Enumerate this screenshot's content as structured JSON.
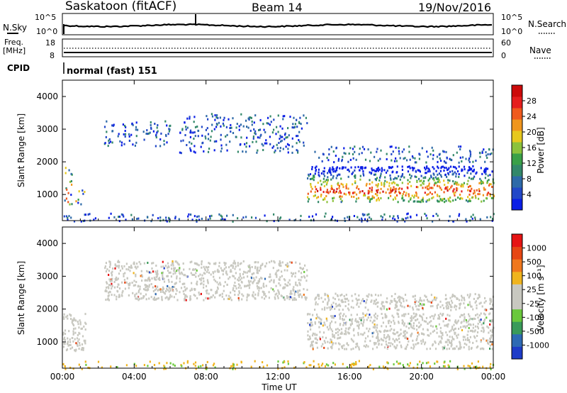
{
  "header": {
    "station": "Saskatoon (fitACF)",
    "beam": "Beam 14",
    "date": "19/Nov/2016"
  },
  "noise_panel": {
    "left_label": "N.Sky",
    "left_ticks": [
      "10^5",
      "10^0"
    ],
    "right_ticks": [
      "10^5",
      "10^0"
    ],
    "right_label": "N.Search"
  },
  "freq_panel": {
    "left_label": [
      "Freq.",
      "[MHz]"
    ],
    "left_ticks": [
      "18",
      "8"
    ],
    "right_ticks": [
      "60",
      "0"
    ],
    "right_label": "Nave"
  },
  "cpid": {
    "label": "CPID",
    "value": "normal (fast) 151"
  },
  "chart_data": [
    {
      "type": "heatmap",
      "quantity": "Power",
      "ylabel": "Slant Range [km]",
      "yticks": [
        "4000",
        "3000",
        "2000",
        "1000"
      ],
      "ylim": [
        200,
        4500
      ],
      "colorbar_label": "Power [dB]",
      "colorbar_ticks": [
        "28",
        "24",
        "20",
        "16",
        "12",
        "8",
        "4"
      ],
      "colorbar_range": [
        0,
        30
      ],
      "colors": [
        "#0a1ee6",
        "#2248c8",
        "#2e6aa8",
        "#33886a",
        "#3aa048",
        "#8cc23c",
        "#e6c81e",
        "#f0961e",
        "#f05a1e",
        "#e61e1e",
        "#cc0a0a"
      ],
      "xlim_hours": [
        0,
        24
      ],
      "regions": [
        {
          "t": [
            0.0,
            0.5
          ],
          "range": [
            700,
            1900
          ],
          "level": "mixed"
        },
        {
          "t": [
            0.7,
            1.3
          ],
          "range": [
            700,
            1200
          ],
          "level": "mixed"
        },
        {
          "t": [
            2.3,
            6.0
          ],
          "range": [
            2500,
            3300
          ],
          "level": "weak"
        },
        {
          "t": [
            6.5,
            13.6
          ],
          "range": [
            2300,
            3500
          ],
          "level": "weak"
        },
        {
          "t": [
            13.6,
            24.0
          ],
          "range": [
            800,
            1900
          ],
          "level": "strong"
        },
        {
          "t": [
            14.0,
            24.0
          ],
          "range": [
            2000,
            2500
          ],
          "level": "weak"
        },
        {
          "t": [
            0.0,
            24.0
          ],
          "range": [
            200,
            450
          ],
          "level": "weak"
        }
      ]
    },
    {
      "type": "heatmap",
      "quantity": "Velocity",
      "xlabel": "Time UT",
      "ylabel": "Slant Range [km]",
      "xticks": [
        "00:00",
        "04:00",
        "08:00",
        "12:00",
        "16:00",
        "20:00",
        "00:00"
      ],
      "yticks": [
        "4000",
        "3000",
        "2000",
        "1000"
      ],
      "ylim": [
        200,
        4500
      ],
      "colorbar_label": "Velocity [m s⁻¹]",
      "colorbar_ticks": [
        "1000",
        "500",
        "100",
        "25",
        "-25",
        "-100",
        "-500",
        "-1000"
      ],
      "colors": [
        "#1e3cc8",
        "#2e6ab4",
        "#3a9a5a",
        "#6ac83c",
        "#c8c8c0",
        "#c8c8c0",
        "#f0b41e",
        "#f0781e",
        "#e64614",
        "#e61414"
      ],
      "xlim_hours": [
        0,
        24
      ],
      "regions": [
        {
          "t": [
            0.0,
            1.3
          ],
          "range": [
            700,
            1900
          ],
          "level": "ground"
        },
        {
          "t": [
            2.3,
            13.6
          ],
          "range": [
            2300,
            3500
          ],
          "level": "ground"
        },
        {
          "t": [
            13.6,
            24.0
          ],
          "range": [
            800,
            1900
          ],
          "level": "ground"
        },
        {
          "t": [
            14.0,
            24.0
          ],
          "range": [
            2000,
            2500
          ],
          "level": "ground"
        },
        {
          "t": [
            0.0,
            24.0
          ],
          "range": [
            200,
            450
          ],
          "level": "negative"
        }
      ]
    }
  ]
}
